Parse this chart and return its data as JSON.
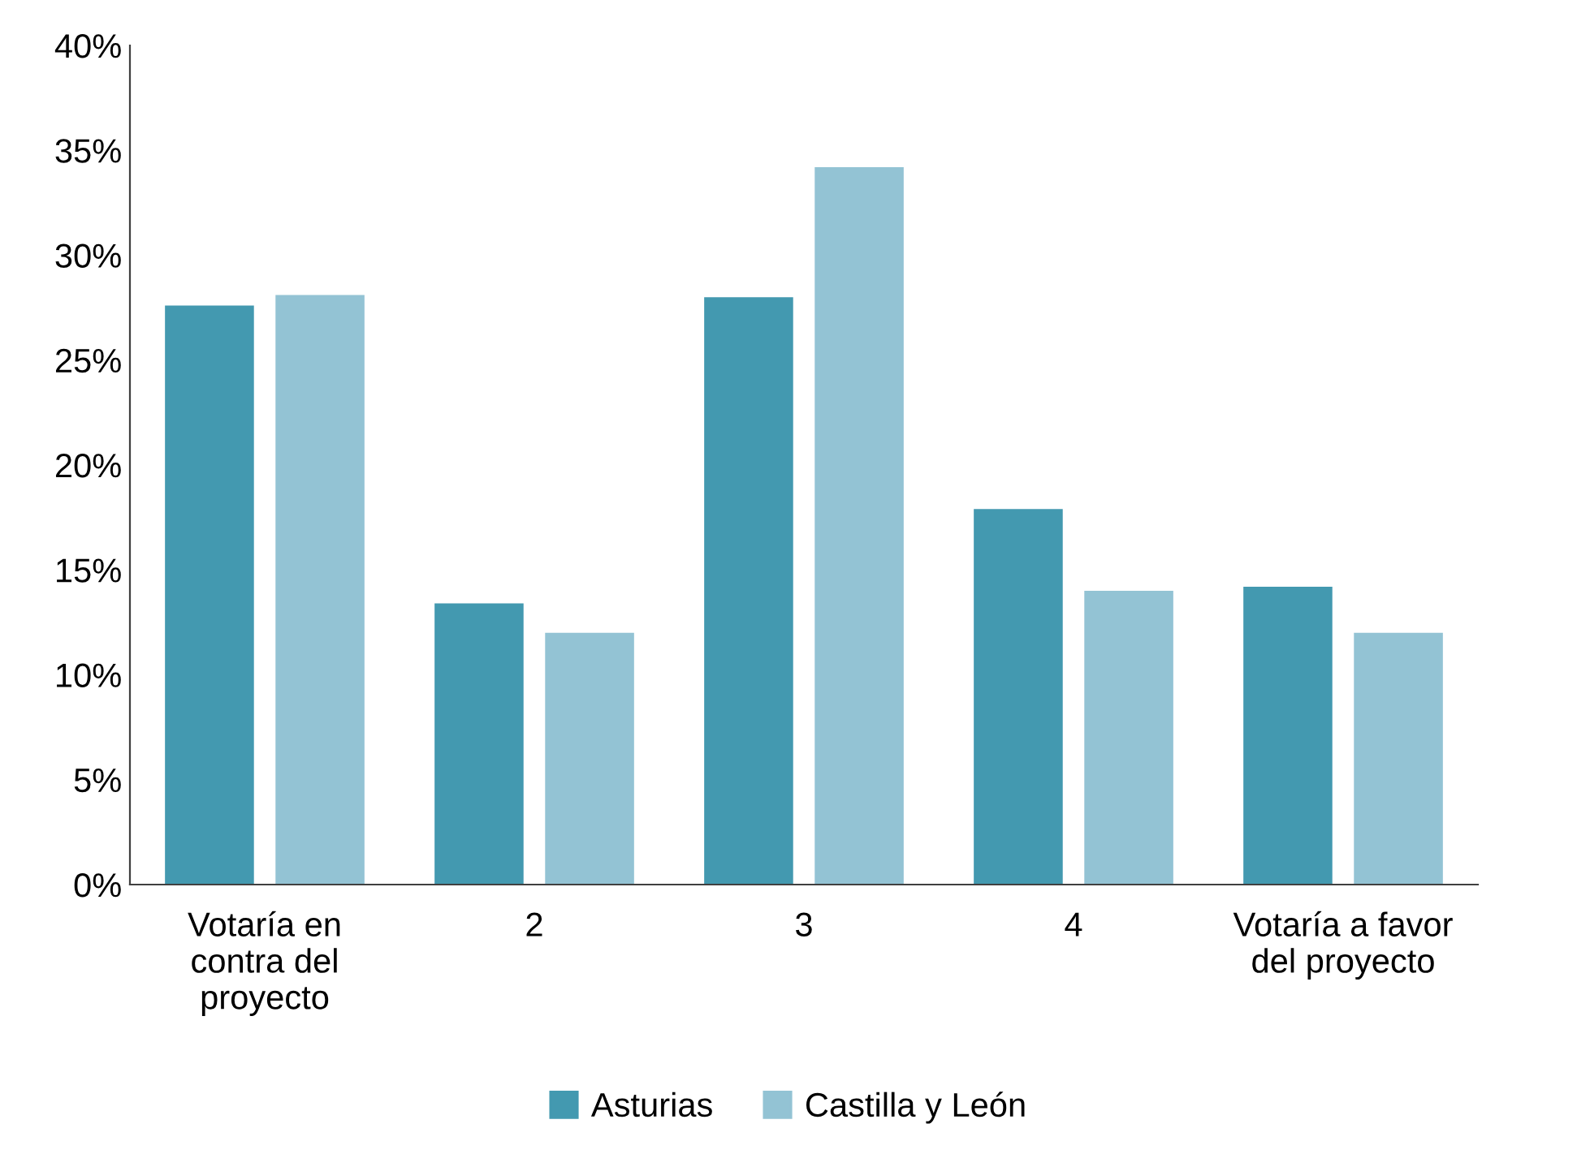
{
  "chart_data": {
    "type": "bar",
    "categories": [
      "Votaría en\ncontra del\nproyecto",
      "2",
      "3",
      "4",
      "Votaría a favor\ndel proyecto"
    ],
    "series": [
      {
        "name": "Asturias",
        "color": "#4399b0",
        "values": [
          27.6,
          13.4,
          28.0,
          17.9,
          14.2
        ]
      },
      {
        "name": "Castilla y León",
        "color": "#93c3d4",
        "values": [
          28.1,
          12.0,
          34.2,
          14.0,
          12.0
        ]
      }
    ],
    "ylim": [
      0,
      40
    ],
    "yticks": [
      {
        "value": 0,
        "label": "0%"
      },
      {
        "value": 5,
        "label": "5%"
      },
      {
        "value": 10,
        "label": "10%"
      },
      {
        "value": 15,
        "label": "15%"
      },
      {
        "value": 20,
        "label": "20%"
      },
      {
        "value": 25,
        "label": "25%"
      },
      {
        "value": 30,
        "label": "30%"
      },
      {
        "value": 35,
        "label": "35%"
      },
      {
        "value": 40,
        "label": "40%"
      }
    ],
    "grid": false,
    "legend": "bottom"
  }
}
